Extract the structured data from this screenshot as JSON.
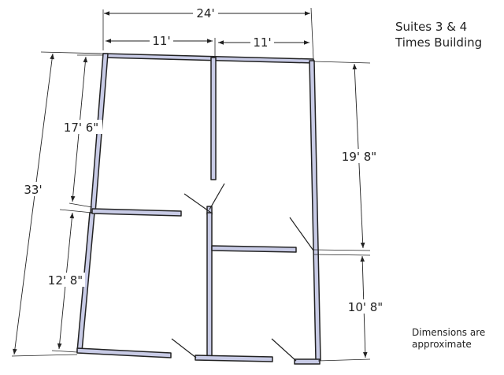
{
  "title": {
    "line1": "Suites 3 & 4",
    "line2": "Times Building"
  },
  "note": {
    "line1": "Dimensions are",
    "line2": "approximate"
  },
  "dimensions": {
    "overall_width": "24'",
    "left_width": "11'",
    "right_width": "11'",
    "overall_depth": "33'",
    "upper_left_depth": "17' 6\"",
    "lower_left_depth": "12' 8\"",
    "upper_right_depth": "19' 8\"",
    "lower_right_depth": "10' 8\""
  },
  "colors": {
    "wall_fill": "#c8cbe6",
    "wall_stroke": "#222222",
    "dim_line": "#222222"
  }
}
